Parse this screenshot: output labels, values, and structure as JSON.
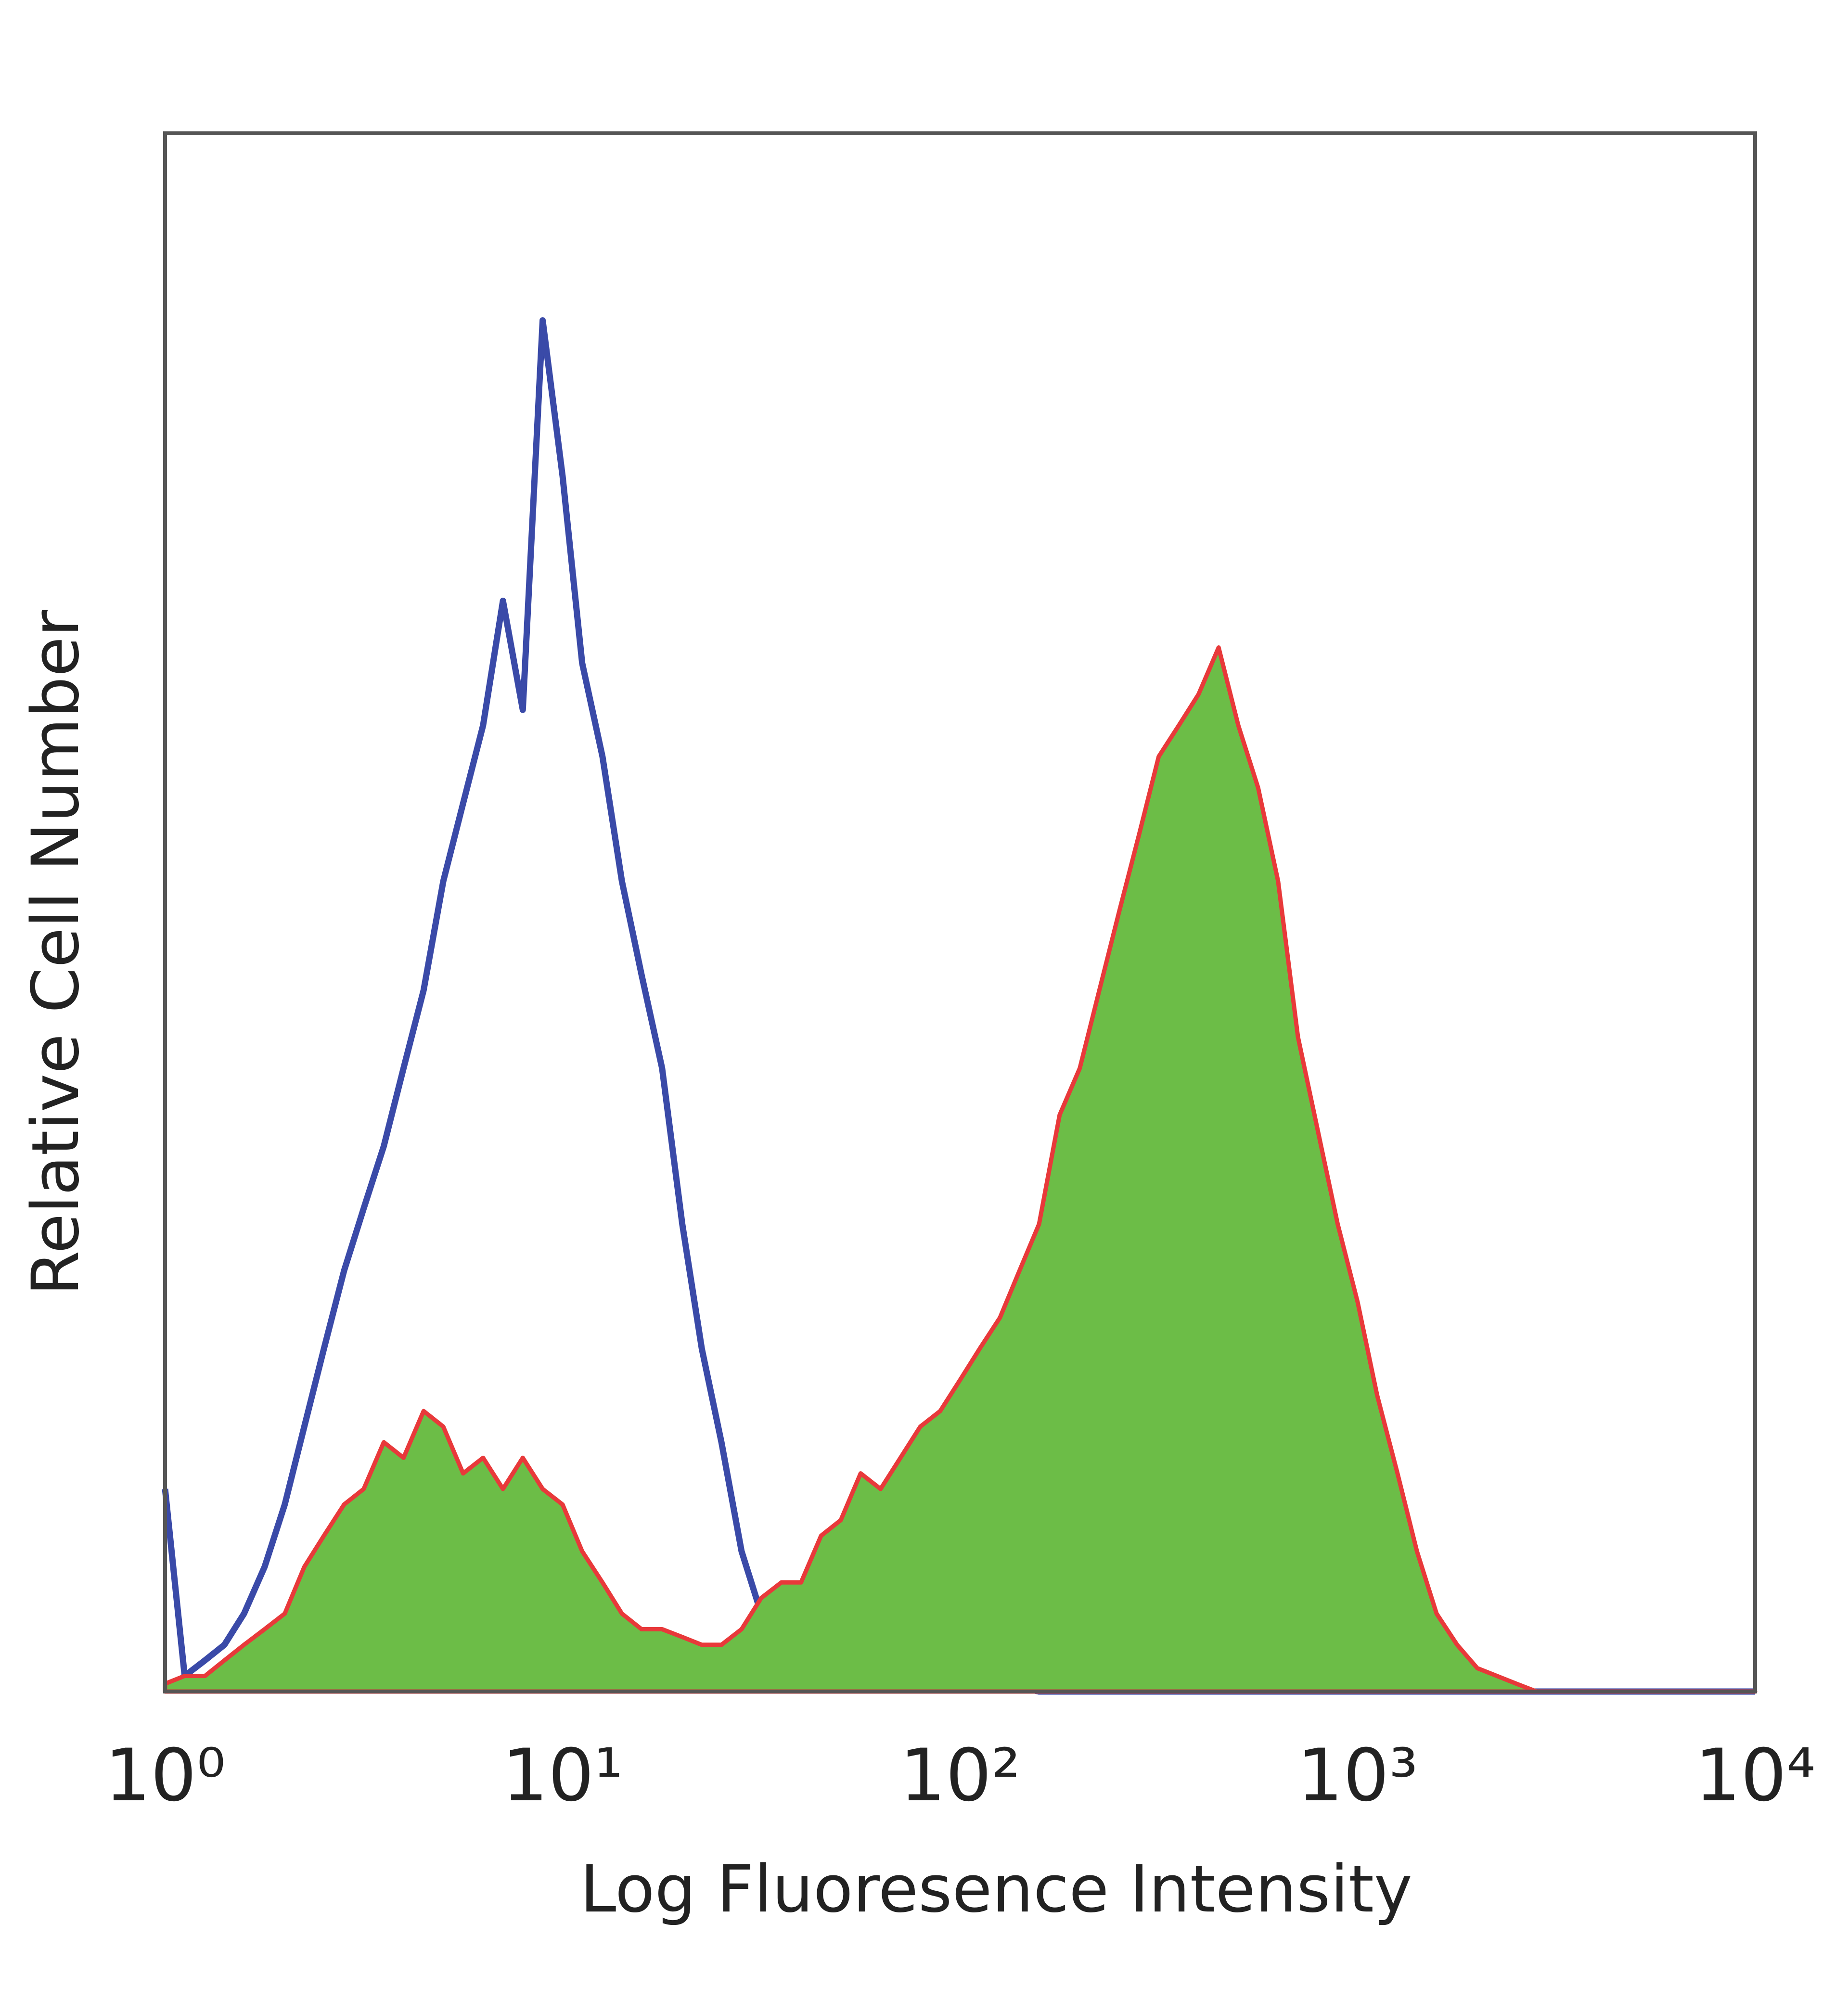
{
  "chart_data": {
    "type": "line",
    "xlabel": "Log Fluoresence Intensity",
    "ylabel": "Relative Cell Number",
    "xscale": "log",
    "grid": false,
    "x": [
      1,
      1.12,
      1.26,
      1.41,
      1.58,
      1.78,
      2,
      2.24,
      2.51,
      2.82,
      3.16,
      3.55,
      3.98,
      4.47,
      5.01,
      5.62,
      6.31,
      7.08,
      7.94,
      8.91,
      10,
      11.2,
      12.6,
      14.1,
      15.8,
      17.8,
      20,
      22.4,
      25.1,
      28.2,
      31.6,
      35.5,
      39.8,
      44.7,
      50.1,
      56.2,
      63.1,
      70.8,
      79.4,
      89.1,
      100,
      112,
      126,
      141,
      158,
      178,
      200,
      224,
      251,
      282,
      316,
      355,
      398,
      447,
      501,
      562,
      631,
      708,
      794,
      891,
      1000,
      1120,
      1260,
      1410,
      1580,
      1780,
      2000,
      2240,
      2510,
      2820,
      3160,
      3550,
      3980,
      4470,
      5010,
      5620,
      6310,
      7080,
      7940,
      8910,
      10000
    ],
    "series": [
      {
        "color": "#3a4aa8",
        "fill": false,
        "values": [
          13,
          1,
          2,
          3,
          5,
          8,
          12,
          17,
          22,
          27,
          31,
          35,
          40,
          45,
          52,
          57,
          62,
          70,
          63,
          88,
          78,
          66,
          60,
          52,
          46,
          40,
          30,
          22,
          16,
          9,
          5,
          3,
          2,
          1.5,
          1.5,
          1,
          1,
          0.5,
          0.5,
          1,
          1.5,
          1,
          2.5,
          0.3,
          0,
          0,
          0,
          0,
          0,
          0,
          0,
          0,
          0,
          0,
          0,
          0,
          0,
          0,
          0,
          0,
          0,
          0,
          0,
          0,
          0,
          0,
          0,
          0,
          0,
          0,
          0,
          0,
          0,
          0,
          0,
          0,
          0,
          0,
          0,
          0,
          0
        ]
      },
      {
        "color": "#6cbd47",
        "edge_color": "#e8393a",
        "fill": true,
        "values": [
          0.5,
          1,
          1,
          2,
          3,
          4,
          5,
          8,
          10,
          12,
          13,
          16,
          15,
          18,
          17,
          14,
          15,
          13,
          15,
          13,
          12,
          9,
          7,
          5,
          4,
          4,
          3.5,
          3,
          3,
          4,
          6,
          7,
          7,
          10,
          11,
          14,
          13,
          15,
          17,
          18,
          20,
          22,
          24,
          27,
          30,
          37,
          40,
          45,
          50,
          55,
          60,
          62,
          64,
          67,
          62,
          58,
          52,
          42,
          36,
          30,
          25,
          19,
          14,
          9,
          5,
          3,
          1.5,
          1,
          0.5,
          0,
          0,
          0,
          0,
          0,
          0,
          0,
          0,
          0,
          0,
          0,
          0
        ]
      }
    ],
    "xlim": [
      1,
      10000
    ],
    "xticks": [
      {
        "value": 1,
        "label": "10⁰"
      },
      {
        "value": 10,
        "label": "10¹"
      },
      {
        "value": 100,
        "label": "10²"
      },
      {
        "value": 1000,
        "label": "10³"
      },
      {
        "value": 10000,
        "label": "10⁴"
      }
    ],
    "ylim": [
      0,
      100
    ],
    "yticks": []
  }
}
